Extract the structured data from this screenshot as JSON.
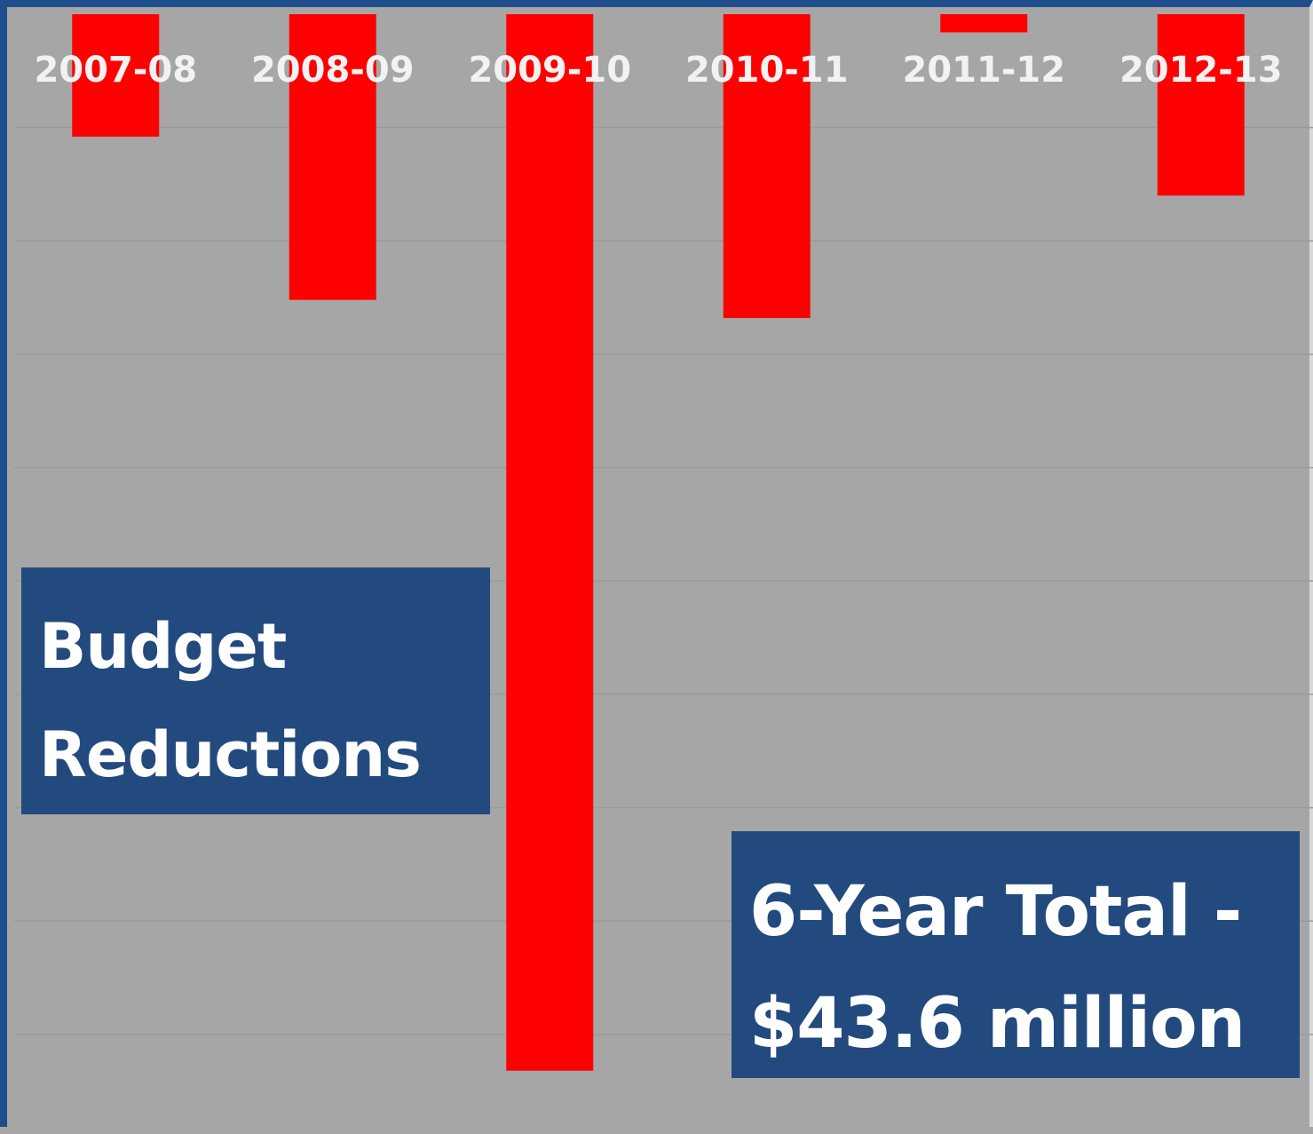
{
  "chart_data": {
    "type": "bar",
    "categories": [
      "2007-08",
      "2008-09",
      "2009-10",
      "2010-11",
      "2011-12",
      "2012-13"
    ],
    "values": [
      -2.7,
      -6.3,
      -23.3,
      -6.7,
      -0.4,
      -4.0
    ],
    "ylim": [
      -24.5,
      0
    ],
    "grid": true,
    "bar_color": "#ff0000",
    "tick_label_color": "#f2f2f2"
  },
  "labels": {
    "title_line1": "Budget",
    "title_line2": "Reductions",
    "total_line1": "6-Year Total  -",
    "total_line2": "$43.6 million"
  },
  "colors": {
    "background": "#a6a6a6",
    "box": "#224a7e",
    "border": "#1f4e8c"
  }
}
